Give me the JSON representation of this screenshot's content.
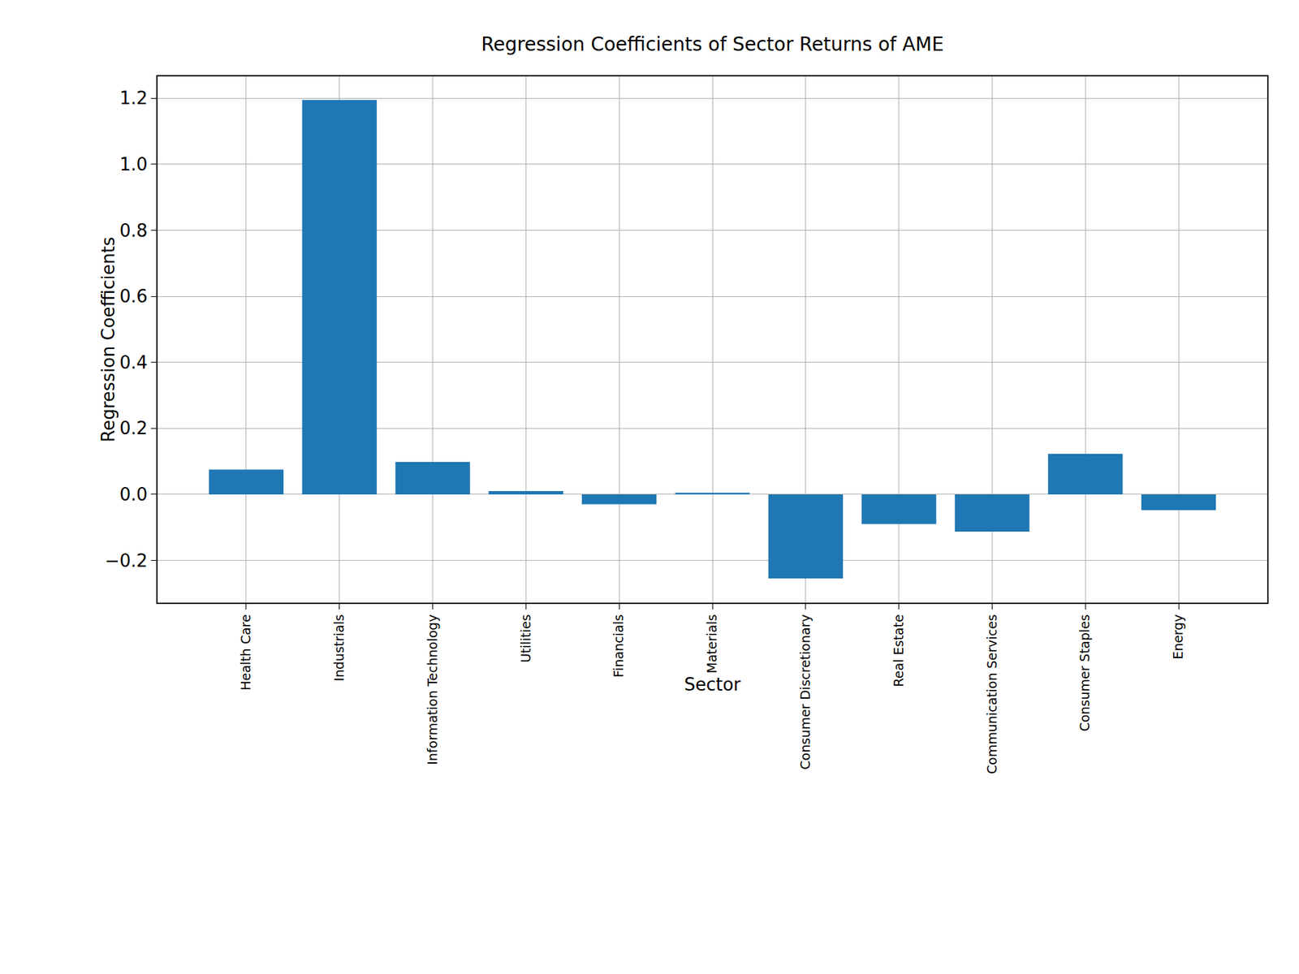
{
  "chart_data": {
    "type": "bar",
    "title": "Regression Coefficients of Sector Returns of AME",
    "x_label": "Sector",
    "y_label": "Regression Coefficients",
    "categories": [
      "Health Care",
      "Industrials",
      "Information Technology",
      "Utilities",
      "Financials",
      "Materials",
      "Consumer Discretionary",
      "Real Estate",
      "Communication Services",
      "Consumer Staples",
      "Energy"
    ],
    "values": [
      0.075,
      1.195,
      0.098,
      0.01,
      -0.03,
      0.005,
      -0.255,
      -0.09,
      -0.113,
      0.123,
      -0.048
    ],
    "color": "#1f77b4",
    "ylim": [
      -0.328,
      1.266
    ],
    "yticks": [
      {
        "value": -0.2,
        "label": "−0.2"
      },
      {
        "value": 0,
        "label": "0.0"
      },
      0.2,
      0.4,
      0.6,
      0.8,
      {
        "value": 1.0,
        "label": "1.0"
      },
      1.2
    ],
    "grid": true
  }
}
